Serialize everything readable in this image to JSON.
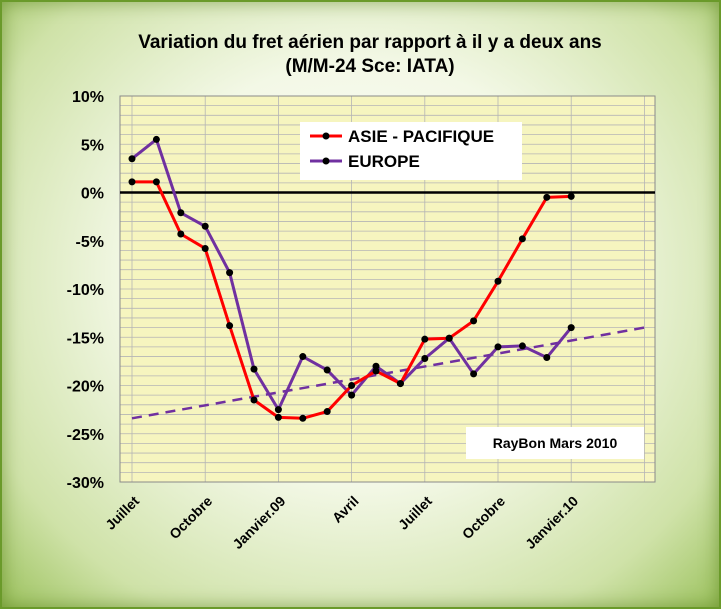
{
  "chart_data": {
    "type": "line",
    "title": "Variation du fret aérien  par rapport à il y a deux ans",
    "subtitle": "(M/M-24   Sce: IATA)",
    "ylim": [
      -30,
      10
    ],
    "yticks": [
      10,
      5,
      0,
      -5,
      -10,
      -15,
      -20,
      -25,
      -30
    ],
    "ytick_labels": [
      "10%",
      "5%",
      "0%",
      "-5%",
      "-10%",
      "-15%",
      "-20%",
      "-25%",
      "-30%"
    ],
    "x_count": 22,
    "x_tick_labels": [
      {
        "index": 0,
        "label": "Juillet"
      },
      {
        "index": 3,
        "label": "Octobre"
      },
      {
        "index": 6,
        "label": "Janvier.09"
      },
      {
        "index": 9,
        "label": "Avril"
      },
      {
        "index": 12,
        "label": "Juillet"
      },
      {
        "index": 15,
        "label": "Octobre"
      },
      {
        "index": 18,
        "label": "Janvier.10"
      }
    ],
    "grid": true,
    "zero_line": true,
    "series": [
      {
        "name": "ASIE - PACIFIQUE",
        "color": "#ff0000",
        "values": [
          1.1,
          1.1,
          -4.3,
          -5.8,
          -13.8,
          -21.5,
          -23.3,
          -23.4,
          -22.7,
          -20.0,
          -18.5,
          -19.8,
          -15.2,
          -15.1,
          -13.3,
          -9.2,
          -4.8,
          -0.5,
          -0.4
        ]
      },
      {
        "name": "EUROPE",
        "color": "#7030a0",
        "values": [
          3.5,
          5.5,
          -2.1,
          -3.5,
          -8.3,
          -18.3,
          -22.5,
          -17.0,
          -18.4,
          -21.0,
          -18.0,
          -19.8,
          -17.2,
          -15.1,
          -18.8,
          -16.0,
          -15.9,
          -17.1,
          -14.0
        ]
      }
    ],
    "trendline": {
      "series": "EUROPE",
      "color": "#7030a0",
      "style": "dashed",
      "y_start": -23.4,
      "y_end": -14.0
    },
    "legend_position": "top-right",
    "annotation": "RayBon Mars 2010",
    "colors": {
      "plot_background": "#f6f5bf",
      "grid": "#b5b5b5",
      "marker": "#000000"
    }
  }
}
